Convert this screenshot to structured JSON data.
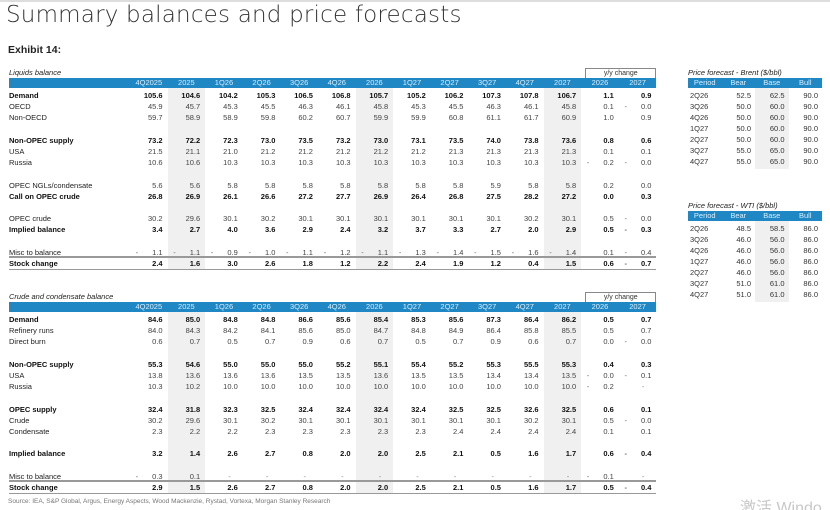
{
  "title": "Summary balances and price forecasts",
  "exhibit": "Exhibit 14:",
  "colors": {
    "header_blue": "#1f87c4",
    "shade": "#f0f0f0"
  },
  "columns": [
    "4Q2025",
    "2025",
    "1Q26",
    "2Q26",
    "3Q26",
    "4Q26",
    "2026",
    "1Q27",
    "2Q27",
    "3Q27",
    "4Q27",
    "2027",
    "2026",
    "2027"
  ],
  "yy_label": "y/y change",
  "liquids": {
    "caption": "Liquids balance",
    "rows": [
      {
        "label": "Demand",
        "bold": true,
        "values": [
          "105.6",
          "104.6",
          "104.2",
          "105.3",
          "106.5",
          "106.8",
          "105.7",
          "105.2",
          "106.2",
          "107.3",
          "107.8",
          "106.7",
          "1.1",
          "0.9"
        ]
      },
      {
        "label": "OECD",
        "values": [
          "45.9",
          "45.7",
          "45.3",
          "45.5",
          "46.3",
          "46.1",
          "45.8",
          "45.3",
          "45.5",
          "46.3",
          "46.1",
          "45.8",
          "0.1",
          "-0.0"
        ]
      },
      {
        "label": "Non-OECD",
        "values": [
          "59.7",
          "58.9",
          "58.9",
          "59.8",
          "60.2",
          "60.7",
          "59.9",
          "59.9",
          "60.8",
          "61.1",
          "61.7",
          "60.9",
          "1.0",
          "0.9"
        ]
      },
      {
        "spacer": true
      },
      {
        "label": "Non-OPEC supply",
        "bold": true,
        "values": [
          "73.2",
          "72.2",
          "72.3",
          "73.0",
          "73.5",
          "73.2",
          "73.0",
          "73.1",
          "73.5",
          "74.0",
          "73.8",
          "73.6",
          "0.8",
          "0.6"
        ]
      },
      {
        "label": "USA",
        "values": [
          "21.5",
          "21.1",
          "21.0",
          "21.2",
          "21.2",
          "21.2",
          "21.2",
          "21.2",
          "21.3",
          "21.3",
          "21.3",
          "21.3",
          "0.1",
          "0.1"
        ]
      },
      {
        "label": "Russia",
        "values": [
          "10.6",
          "10.6",
          "10.3",
          "10.3",
          "10.3",
          "10.3",
          "10.3",
          "10.3",
          "10.3",
          "10.3",
          "10.3",
          "10.3",
          "-0.2",
          "-0.0"
        ]
      },
      {
        "spacer": true
      },
      {
        "label": "OPEC NGLs/condensate",
        "values": [
          "5.6",
          "5.6",
          "5.8",
          "5.8",
          "5.8",
          "5.8",
          "5.8",
          "5.8",
          "5.8",
          "5.9",
          "5.8",
          "5.8",
          "0.2",
          "0.0"
        ]
      },
      {
        "label": "Call on OPEC crude",
        "bold": true,
        "values": [
          "26.8",
          "26.9",
          "26.1",
          "26.6",
          "27.2",
          "27.7",
          "26.9",
          "26.4",
          "26.8",
          "27.5",
          "28.2",
          "27.2",
          "0.0",
          "0.3"
        ]
      },
      {
        "spacer": true
      },
      {
        "label": "OPEC crude",
        "values": [
          "30.2",
          "29.6",
          "30.1",
          "30.2",
          "30.1",
          "30.1",
          "30.1",
          "30.1",
          "30.1",
          "30.1",
          "30.2",
          "30.1",
          "0.5",
          "-0.0"
        ]
      },
      {
        "label": "Implied balance",
        "bold": true,
        "values": [
          "3.4",
          "2.7",
          "4.0",
          "3.6",
          "2.9",
          "2.4",
          "3.2",
          "3.7",
          "3.3",
          "2.7",
          "2.0",
          "2.9",
          "0.5",
          "-0.3"
        ]
      },
      {
        "spacer": true
      },
      {
        "label": "Misc to balance",
        "values": [
          "-1.1",
          "-1.1",
          "-0.9",
          "-1.0",
          "-1.1",
          "-1.2",
          "-1.1",
          "-1.3",
          "-1.4",
          "-1.5",
          "-1.6",
          "-1.4",
          "0.1",
          "-0.4"
        ]
      },
      {
        "label": "Stock change",
        "bold": true,
        "stock": true,
        "values": [
          "2.4",
          "1.6",
          "3.0",
          "2.6",
          "1.8",
          "1.2",
          "2.2",
          "2.4",
          "1.9",
          "1.2",
          "0.4",
          "1.5",
          "0.6",
          "-0.7"
        ]
      }
    ]
  },
  "crude": {
    "caption": "Crude and condensate balance",
    "rows": [
      {
        "label": "Demand",
        "bold": true,
        "values": [
          "84.6",
          "85.0",
          "84.8",
          "84.8",
          "86.6",
          "85.6",
          "85.4",
          "85.3",
          "85.6",
          "87.3",
          "86.4",
          "86.2",
          "0.5",
          "0.7"
        ]
      },
      {
        "label": "Refinery runs",
        "values": [
          "84.0",
          "84.3",
          "84.2",
          "84.1",
          "85.6",
          "85.0",
          "84.7",
          "84.8",
          "84.9",
          "86.4",
          "85.8",
          "85.5",
          "0.5",
          "0.7"
        ]
      },
      {
        "label": "Direct burn",
        "values": [
          "0.6",
          "0.7",
          "0.5",
          "0.7",
          "0.9",
          "0.6",
          "0.7",
          "0.5",
          "0.7",
          "0.9",
          "0.6",
          "0.7",
          "0.0",
          "-0.0"
        ]
      },
      {
        "spacer": true
      },
      {
        "label": "Non-OPEC supply",
        "bold": true,
        "values": [
          "55.3",
          "54.6",
          "55.0",
          "55.0",
          "55.0",
          "55.2",
          "55.1",
          "55.4",
          "55.2",
          "55.3",
          "55.5",
          "55.3",
          "0.4",
          "0.3"
        ]
      },
      {
        "label": "USA",
        "values": [
          "13.8",
          "13.6",
          "13.6",
          "13.6",
          "13.5",
          "13.5",
          "13.6",
          "13.5",
          "13.5",
          "13.4",
          "13.4",
          "13.5",
          "-0.0",
          "-0.1"
        ]
      },
      {
        "label": "Russia",
        "values": [
          "10.3",
          "10.2",
          "10.0",
          "10.0",
          "10.0",
          "10.0",
          "10.0",
          "10.0",
          "10.0",
          "10.0",
          "10.0",
          "10.0",
          "-0.2",
          "-"
        ]
      },
      {
        "spacer": true
      },
      {
        "label": "OPEC supply",
        "bold": true,
        "values": [
          "32.4",
          "31.8",
          "32.3",
          "32.5",
          "32.4",
          "32.4",
          "32.4",
          "32.4",
          "32.5",
          "32.5",
          "32.6",
          "32.5",
          "0.6",
          "0.1"
        ]
      },
      {
        "label": "Crude",
        "values": [
          "30.2",
          "29.6",
          "30.1",
          "30.2",
          "30.1",
          "30.1",
          "30.1",
          "30.1",
          "30.1",
          "30.1",
          "30.2",
          "30.1",
          "0.5",
          "-0.0"
        ]
      },
      {
        "label": "Condensate",
        "values": [
          "2.3",
          "2.2",
          "2.2",
          "2.3",
          "2.3",
          "2.3",
          "2.3",
          "2.3",
          "2.4",
          "2.4",
          "2.4",
          "2.4",
          "0.1",
          "0.1"
        ]
      },
      {
        "spacer": true
      },
      {
        "label": "Implied balance",
        "bold": true,
        "values": [
          "3.2",
          "1.4",
          "2.6",
          "2.7",
          "0.8",
          "2.0",
          "2.0",
          "2.5",
          "2.1",
          "0.5",
          "1.6",
          "1.7",
          "0.6",
          "-0.4"
        ]
      },
      {
        "spacer": true
      },
      {
        "label": "Misc to balance",
        "values": [
          "-0.3",
          "0.1",
          "-",
          "-",
          "-",
          "-",
          "-",
          "-",
          "-",
          "-",
          "-",
          "-",
          "-0.1",
          "-"
        ]
      },
      {
        "label": "Stock change",
        "bold": true,
        "stock": true,
        "values": [
          "2.9",
          "1.5",
          "2.6",
          "2.7",
          "0.8",
          "2.0",
          "2.0",
          "2.5",
          "2.1",
          "0.5",
          "1.6",
          "1.7",
          "0.5",
          "-0.4"
        ]
      }
    ]
  },
  "brent": {
    "caption": "Price forecast - Brent ($/bbl)",
    "headers": [
      "Period",
      "Bear",
      "Base",
      "Bull"
    ],
    "rows": [
      [
        "2Q26",
        "52.5",
        "62.5",
        "90.0"
      ],
      [
        "3Q26",
        "50.0",
        "60.0",
        "90.0"
      ],
      [
        "4Q26",
        "50.0",
        "60.0",
        "90.0"
      ],
      [
        "1Q27",
        "50.0",
        "60.0",
        "90.0"
      ],
      [
        "2Q27",
        "50.0",
        "60.0",
        "90.0"
      ],
      [
        "3Q27",
        "55.0",
        "65.0",
        "90.0"
      ],
      [
        "4Q27",
        "55.0",
        "65.0",
        "90.0"
      ]
    ]
  },
  "wti": {
    "caption": "Price forecast - WTI ($/bbl)",
    "headers": [
      "Period",
      "Bear",
      "Base",
      "Bull"
    ],
    "rows": [
      [
        "2Q26",
        "48.5",
        "58.5",
        "86.0"
      ],
      [
        "3Q26",
        "46.0",
        "56.0",
        "86.0"
      ],
      [
        "4Q26",
        "46.0",
        "56.0",
        "86.0"
      ],
      [
        "1Q27",
        "46.0",
        "56.0",
        "86.0"
      ],
      [
        "2Q27",
        "46.0",
        "56.0",
        "86.0"
      ],
      [
        "3Q27",
        "51.0",
        "61.0",
        "86.0"
      ],
      [
        "4Q27",
        "51.0",
        "61.0",
        "86.0"
      ]
    ]
  },
  "source": "Source: IEA, S&P Global, Argus, Energy Aspects, Wood Mackenzie, Rystad, Vortexa, Morgan Stanley Research",
  "watermark": "激活 Windo"
}
